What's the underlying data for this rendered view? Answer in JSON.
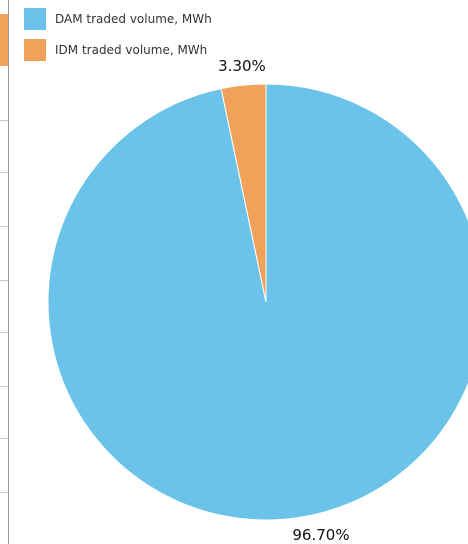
{
  "chart_data": {
    "type": "pie",
    "title": "",
    "series": [
      {
        "name": "DAM traded volume, MWh",
        "value": 96.7,
        "label": "96.70%",
        "color": "#6bc3ea"
      },
      {
        "name": "IDM traded volume, MWh",
        "value": 3.3,
        "label": "3.30%",
        "color": "#f0a25b"
      }
    ],
    "legend_position": "top-left"
  }
}
